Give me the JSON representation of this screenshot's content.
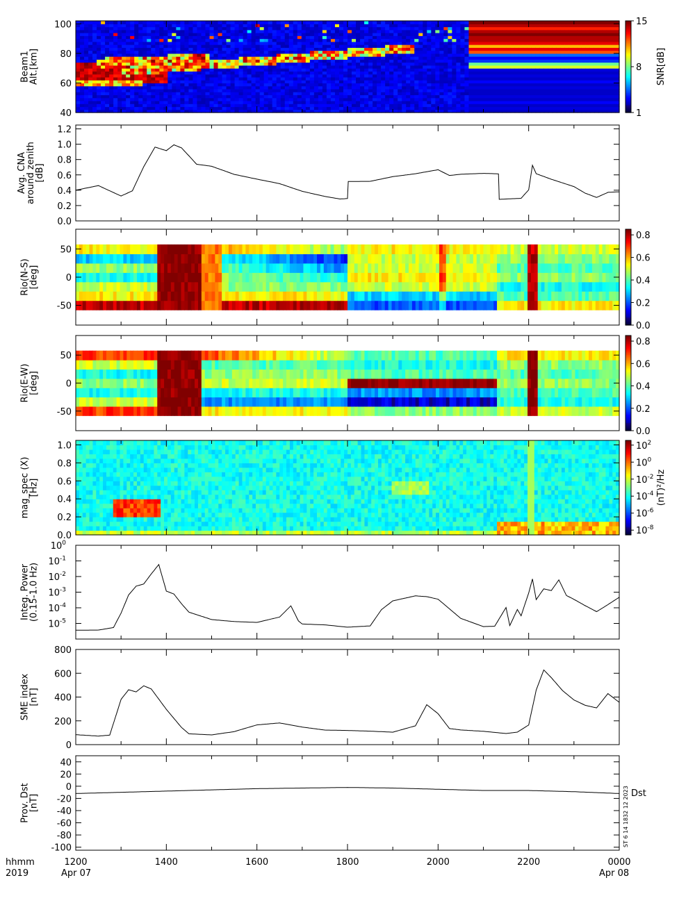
{
  "colors": {
    "axis": "#000000",
    "line": "#000000",
    "background": "#ffffff"
  },
  "x_axis": {
    "range_hhmm": [
      1200,
      2400
    ],
    "tick_labels": [
      "1200",
      "1400",
      "1600",
      "1800",
      "2000",
      "2200",
      "0000"
    ],
    "row_label_1": "hhmm",
    "row_label_2": "2019",
    "start_date": "Apr 07",
    "end_date": "Apr 08"
  },
  "chart_data": [
    {
      "type": "heatmap",
      "ylabel": [
        "Beam1",
        "Alt.[km]"
      ],
      "ylim": [
        40,
        102
      ],
      "yticks": [
        "40",
        "60",
        "80",
        "100"
      ],
      "colorbar": {
        "label": "SNR[dB]",
        "ticks": [
          "1",
          "8",
          "15"
        ],
        "range": [
          1,
          15
        ]
      },
      "note": "noisy heatmap; strong absorption band 60–70 km until ~1400, band rising to ~80 km by ~1900; banded after ~2040"
    },
    {
      "type": "line",
      "ylabel": [
        "Avg. CNA",
        "around zenith",
        "[dB]"
      ],
      "ylim": [
        0,
        1.25
      ],
      "yticks": [
        "0.0",
        "0.2",
        "0.4",
        "0.6",
        "0.8",
        "1.0",
        "1.2"
      ],
      "x": [
        1200,
        1230,
        1300,
        1315,
        1330,
        1345,
        1400,
        1410,
        1420,
        1430,
        1440,
        1500,
        1530,
        1600,
        1630,
        1700,
        1730,
        1750,
        1800,
        1801,
        1830,
        1900,
        1930,
        2000,
        2015,
        2030,
        2100,
        2120,
        2121,
        2150,
        2200,
        2205,
        2210,
        2230,
        2300,
        2315,
        2330,
        2345,
        0
      ],
      "x_hhmm": [
        "1200",
        "1230",
        "1300",
        "1315",
        "1330",
        "1345",
        "1400",
        "1410",
        "1420",
        "1430",
        "1440",
        "1500",
        "1530",
        "1600",
        "1630",
        "1700",
        "1730",
        "1750",
        "1800",
        "1801",
        "1830",
        "1900",
        "1930",
        "2000",
        "2015",
        "2030",
        "2100",
        "2120",
        "2121",
        "2150",
        "2200",
        "2205",
        "2210",
        "2230",
        "2300",
        "2315",
        "2330",
        "2345",
        "0000"
      ],
      "values": [
        0.4,
        0.45,
        0.33,
        0.4,
        0.72,
        0.97,
        0.93,
        0.98,
        0.96,
        0.85,
        0.75,
        0.7,
        0.62,
        0.55,
        0.48,
        0.4,
        0.32,
        0.28,
        0.29,
        0.5,
        0.52,
        0.57,
        0.6,
        0.68,
        0.6,
        0.62,
        0.63,
        0.62,
        0.28,
        0.3,
        0.4,
        0.72,
        0.62,
        0.55,
        0.45,
        0.35,
        0.3,
        0.38,
        0.38
      ]
    },
    {
      "type": "heatmap",
      "ylabel": [
        "Rio(N-S)",
        "[deg]"
      ],
      "ylim": [
        -85,
        85
      ],
      "yticks": [
        "-50",
        "0",
        "50"
      ],
      "colorbar": {
        "ticks": [
          "0.0",
          "0.2",
          "0.4",
          "0.6",
          "0.8"
        ],
        "range": [
          0,
          0.85
        ]
      }
    },
    {
      "type": "heatmap",
      "ylabel": [
        "Rio(E-W)",
        "[deg]"
      ],
      "ylim": [
        -85,
        85
      ],
      "yticks": [
        "-50",
        "0",
        "50"
      ],
      "colorbar": {
        "ticks": [
          "0.0",
          "0.2",
          "0.4",
          "0.6",
          "0.8"
        ],
        "range": [
          0,
          0.85
        ]
      }
    },
    {
      "type": "heatmap",
      "ylabel": [
        "mag_spec (X)",
        "[Hz]"
      ],
      "ylim": [
        0,
        1.05
      ],
      "yticks": [
        "0.0",
        "0.2",
        "0.4",
        "0.6",
        "0.8",
        "1.0"
      ],
      "colorbar": {
        "label": "(nT)²/Hz",
        "ticks": [
          "10",
          "10",
          "10",
          "10",
          "10",
          "10"
        ],
        "tick_exponents": [
          "2",
          "0",
          "-2",
          "-4",
          "-6",
          "-8"
        ]
      }
    },
    {
      "type": "line",
      "log_y": true,
      "ylabel": [
        "Integ. Power",
        "(0.15-1.0 Hz)"
      ],
      "ylim_exp": [
        -6,
        0
      ],
      "yticks": [
        "10",
        "10",
        "10",
        "10",
        "10",
        "10"
      ],
      "ytick_exponents": [
        "0",
        "-1",
        "-2",
        "-3",
        "-4",
        "-5"
      ],
      "x": [
        1200,
        1230,
        1250,
        1300,
        1310,
        1320,
        1330,
        1340,
        1350,
        1400,
        1410,
        1420,
        1430,
        1500,
        1530,
        1600,
        1630,
        1645,
        1655,
        1700,
        1730,
        1800,
        1830,
        1845,
        1900,
        1930,
        1945,
        2000,
        2030,
        2100,
        2115,
        2130,
        2135,
        2145,
        2150,
        2200,
        2205,
        2210,
        2220,
        2230,
        2240,
        2250,
        2300,
        2315,
        2330,
        2345,
        0
      ],
      "values": [
        5e-06,
        5e-06,
        6e-06,
        5e-05,
        0.001,
        0.002,
        0.004,
        0.02,
        0.05,
        0.001,
        0.0005,
        0.0002,
        8e-05,
        2e-05,
        1.2e-05,
        1.2e-05,
        3e-05,
        0.0002,
        2e-05,
        8e-06,
        8e-06,
        8e-06,
        8e-06,
        5e-05,
        0.0004,
        0.0005,
        0.0004,
        0.0003,
        2e-05,
        8e-06,
        8e-06,
        8e-05,
        8e-06,
        0.0001,
        2e-05,
        0.0008,
        0.008,
        0.0003,
        0.0012,
        0.001,
        0.004,
        0.0006,
        0.0003,
        0.0001,
        8e-05,
        0.0002,
        0.0003
      ]
    },
    {
      "type": "line",
      "ylabel": [
        "SME index",
        "[nT]"
      ],
      "ylim": [
        0,
        800
      ],
      "yticks": [
        "0",
        "200",
        "400",
        "600",
        "800"
      ],
      "x": [
        1200,
        1230,
        1245,
        1300,
        1310,
        1320,
        1330,
        1340,
        1400,
        1420,
        1430,
        1500,
        1530,
        1600,
        1630,
        1700,
        1730,
        1800,
        1830,
        1900,
        1930,
        1945,
        2000,
        2015,
        2030,
        2100,
        2130,
        2145,
        2200,
        2210,
        2220,
        2230,
        2245,
        2300,
        2315,
        2330,
        2345,
        0
      ],
      "values": [
        80,
        70,
        80,
        380,
        470,
        440,
        500,
        470,
        300,
        150,
        100,
        90,
        100,
        170,
        180,
        150,
        130,
        120,
        110,
        110,
        150,
        330,
        260,
        130,
        120,
        110,
        100,
        100,
        160,
        450,
        630,
        560,
        450,
        380,
        330,
        310,
        420,
        360
      ]
    },
    {
      "type": "line",
      "ylabel": [
        "Prov. Dst",
        "[nT]"
      ],
      "ylim": [
        -105,
        50
      ],
      "yticks": [
        "-100",
        "-80",
        "-60",
        "-40",
        "-20",
        "0",
        "20",
        "40"
      ],
      "series_label": "Dst",
      "x": [
        1200,
        1300,
        1400,
        1500,
        1600,
        1700,
        1800,
        1900,
        2000,
        2100,
        2200,
        2300,
        0
      ],
      "values": [
        -12,
        -10,
        -8,
        -6,
        -4,
        -3,
        -2,
        -3,
        -5,
        -7,
        -7,
        -9,
        -12
      ],
      "stamp": "ST 6 14 1832 12 2023"
    }
  ]
}
